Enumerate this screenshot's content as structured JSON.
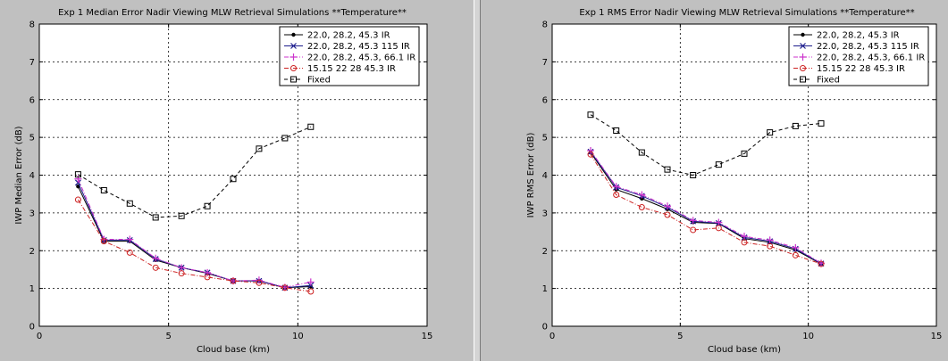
{
  "colors": {
    "background": "#c0c0c0",
    "plot_area": "#ffffff",
    "series_solid": "#000000",
    "series_x": "#1c1c8c",
    "series_plus": "#cc33cc",
    "series_circle": "#cc2222",
    "series_fixed": "#000000"
  },
  "chart_data": [
    {
      "type": "line",
      "title": "Exp 1 Median Error Nadir Viewing MLW Retrieval Simulations **Temperature**",
      "xlabel": "Cloud base (km)",
      "ylabel": "IWP Median Error (dB)",
      "xlim": [
        0,
        15
      ],
      "ylim": [
        0,
        8
      ],
      "xticks": [
        "0",
        "5",
        "10",
        "15"
      ],
      "yticks": [
        "0",
        "1",
        "2",
        "3",
        "4",
        "5",
        "6",
        "7",
        "8"
      ],
      "grid": true,
      "legend_position": "top-right",
      "x": [
        1.5,
        2.5,
        3.5,
        4.5,
        5.5,
        6.5,
        7.5,
        8.5,
        9.5,
        10.5
      ],
      "series": [
        {
          "name": "22.0, 28.2, 45.3 IR",
          "marker": "dot",
          "dash": "solid",
          "color": "#000000",
          "values": [
            3.7,
            2.25,
            2.25,
            1.75,
            1.55,
            1.4,
            1.2,
            1.2,
            1.02,
            1.05
          ]
        },
        {
          "name": "22.0, 28.2, 45.3 115 IR",
          "marker": "x",
          "dash": "solid",
          "color": "#1c1c8c",
          "values": [
            3.8,
            2.28,
            2.28,
            1.78,
            1.55,
            1.42,
            1.2,
            1.2,
            1.02,
            1.08
          ]
        },
        {
          "name": "22.0, 28.2, 45.3, 66.1 IR",
          "marker": "plus",
          "dash": "dashdot",
          "color": "#cc33cc",
          "values": [
            3.9,
            2.3,
            2.3,
            1.8,
            1.55,
            1.42,
            1.2,
            1.22,
            1.03,
            1.17
          ]
        },
        {
          "name": "15.15 22 28 45.3 IR",
          "marker": "circle",
          "dash": "dashdot",
          "color": "#cc2222",
          "values": [
            3.35,
            2.25,
            1.95,
            1.55,
            1.4,
            1.3,
            1.2,
            1.15,
            1.02,
            0.92
          ]
        },
        {
          "name": "Fixed",
          "marker": "square",
          "dash": "dash",
          "color": "#000000",
          "values": [
            4.02,
            3.6,
            3.25,
            2.88,
            2.92,
            3.18,
            3.9,
            4.7,
            4.98,
            5.28
          ]
        }
      ]
    },
    {
      "type": "line",
      "title": "Exp 1 RMS Error Nadir Viewing MLW Retrieval Simulations **Temperature**",
      "xlabel": "Cloud base (km)",
      "ylabel": "IWP RMS Error (dB)",
      "xlim": [
        0,
        15
      ],
      "ylim": [
        0,
        8
      ],
      "xticks": [
        "0",
        "5",
        "10",
        "15"
      ],
      "yticks": [
        "0",
        "1",
        "2",
        "3",
        "4",
        "5",
        "6",
        "7",
        "8"
      ],
      "grid": true,
      "legend_position": "top-right",
      "x": [
        1.5,
        2.5,
        3.5,
        4.5,
        5.5,
        6.5,
        7.5,
        8.5,
        9.5,
        10.5
      ],
      "series": [
        {
          "name": "22.0, 28.2, 45.3 IR",
          "marker": "dot",
          "dash": "solid",
          "color": "#000000",
          "values": [
            4.6,
            3.62,
            3.38,
            3.1,
            2.75,
            2.72,
            2.32,
            2.22,
            2.02,
            1.65
          ]
        },
        {
          "name": "22.0, 28.2, 45.3 115 IR",
          "marker": "x",
          "dash": "solid",
          "color": "#1c1c8c",
          "values": [
            4.62,
            3.68,
            3.45,
            3.15,
            2.78,
            2.73,
            2.35,
            2.25,
            2.05,
            1.66
          ]
        },
        {
          "name": "22.0, 28.2, 45.3, 66.1 IR",
          "marker": "plus",
          "dash": "dashdot",
          "color": "#cc33cc",
          "values": [
            4.65,
            3.7,
            3.48,
            3.18,
            2.8,
            2.75,
            2.38,
            2.28,
            2.08,
            1.67
          ]
        },
        {
          "name": "15.15 22 28 45.3 IR",
          "marker": "circle",
          "dash": "dashdot",
          "color": "#cc2222",
          "values": [
            4.55,
            3.48,
            3.15,
            2.95,
            2.55,
            2.6,
            2.22,
            2.12,
            1.88,
            1.65
          ]
        },
        {
          "name": "Fixed",
          "marker": "square",
          "dash": "dash",
          "color": "#000000",
          "values": [
            5.6,
            5.18,
            4.6,
            4.15,
            4.0,
            4.28,
            4.57,
            5.13,
            5.3,
            5.37
          ]
        }
      ]
    }
  ]
}
